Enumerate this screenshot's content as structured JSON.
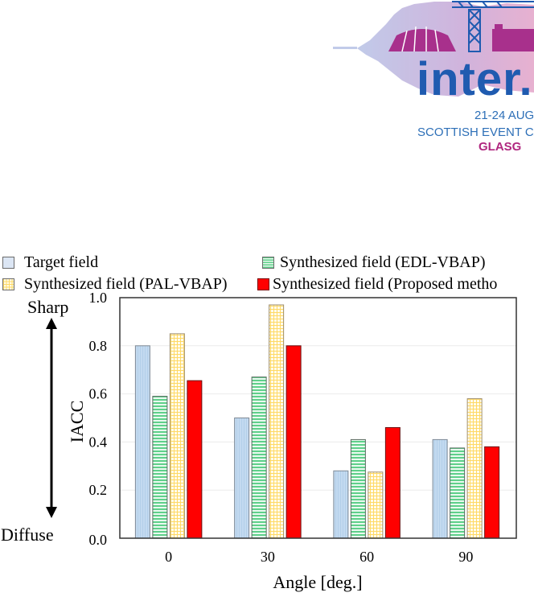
{
  "logo": {
    "word": "inter.",
    "date": "21-24 AUG",
    "venue": "SCOTTISH EVENT CAM",
    "city": "GLASG",
    "colors": {
      "blue": "#1f5bb0",
      "magenta": "#b0277f",
      "wave": "#a6b4dd"
    }
  },
  "chart_data": {
    "type": "bar",
    "title": "",
    "xlabel": "Angle [deg.]",
    "ylabel": "IACC",
    "categories": [
      "0",
      "30",
      "60",
      "90"
    ],
    "ylim": [
      0.0,
      1.0
    ],
    "yticks": [
      "0.0",
      "0.2",
      "0.4",
      "0.6",
      "0.8",
      "1.0"
    ],
    "grid": "horizontal",
    "legend_position": "top",
    "annotations": {
      "top": "Sharp",
      "bottom": "Diffuse",
      "arrow": "double-headed vertical"
    },
    "series": [
      {
        "name": "Target field",
        "values": [
          0.8,
          0.5,
          0.28,
          0.41
        ],
        "color": "#bdd7ee",
        "pattern": "vertical-fine"
      },
      {
        "name": "Synthesized field (EDL-VBAP)",
        "values": [
          0.59,
          0.67,
          0.41,
          0.375
        ],
        "color": "#5fd08a",
        "pattern": "horizontal-stripes"
      },
      {
        "name": "Synthesized field (PAL-VBAP)",
        "values": [
          0.85,
          0.97,
          0.275,
          0.58
        ],
        "color": "#ffd966",
        "pattern": "grid"
      },
      {
        "name": "Synthesized field (Proposed metho",
        "values": [
          0.655,
          0.8,
          0.46,
          0.38
        ],
        "color": "#ff0000",
        "pattern": "solid"
      }
    ]
  }
}
